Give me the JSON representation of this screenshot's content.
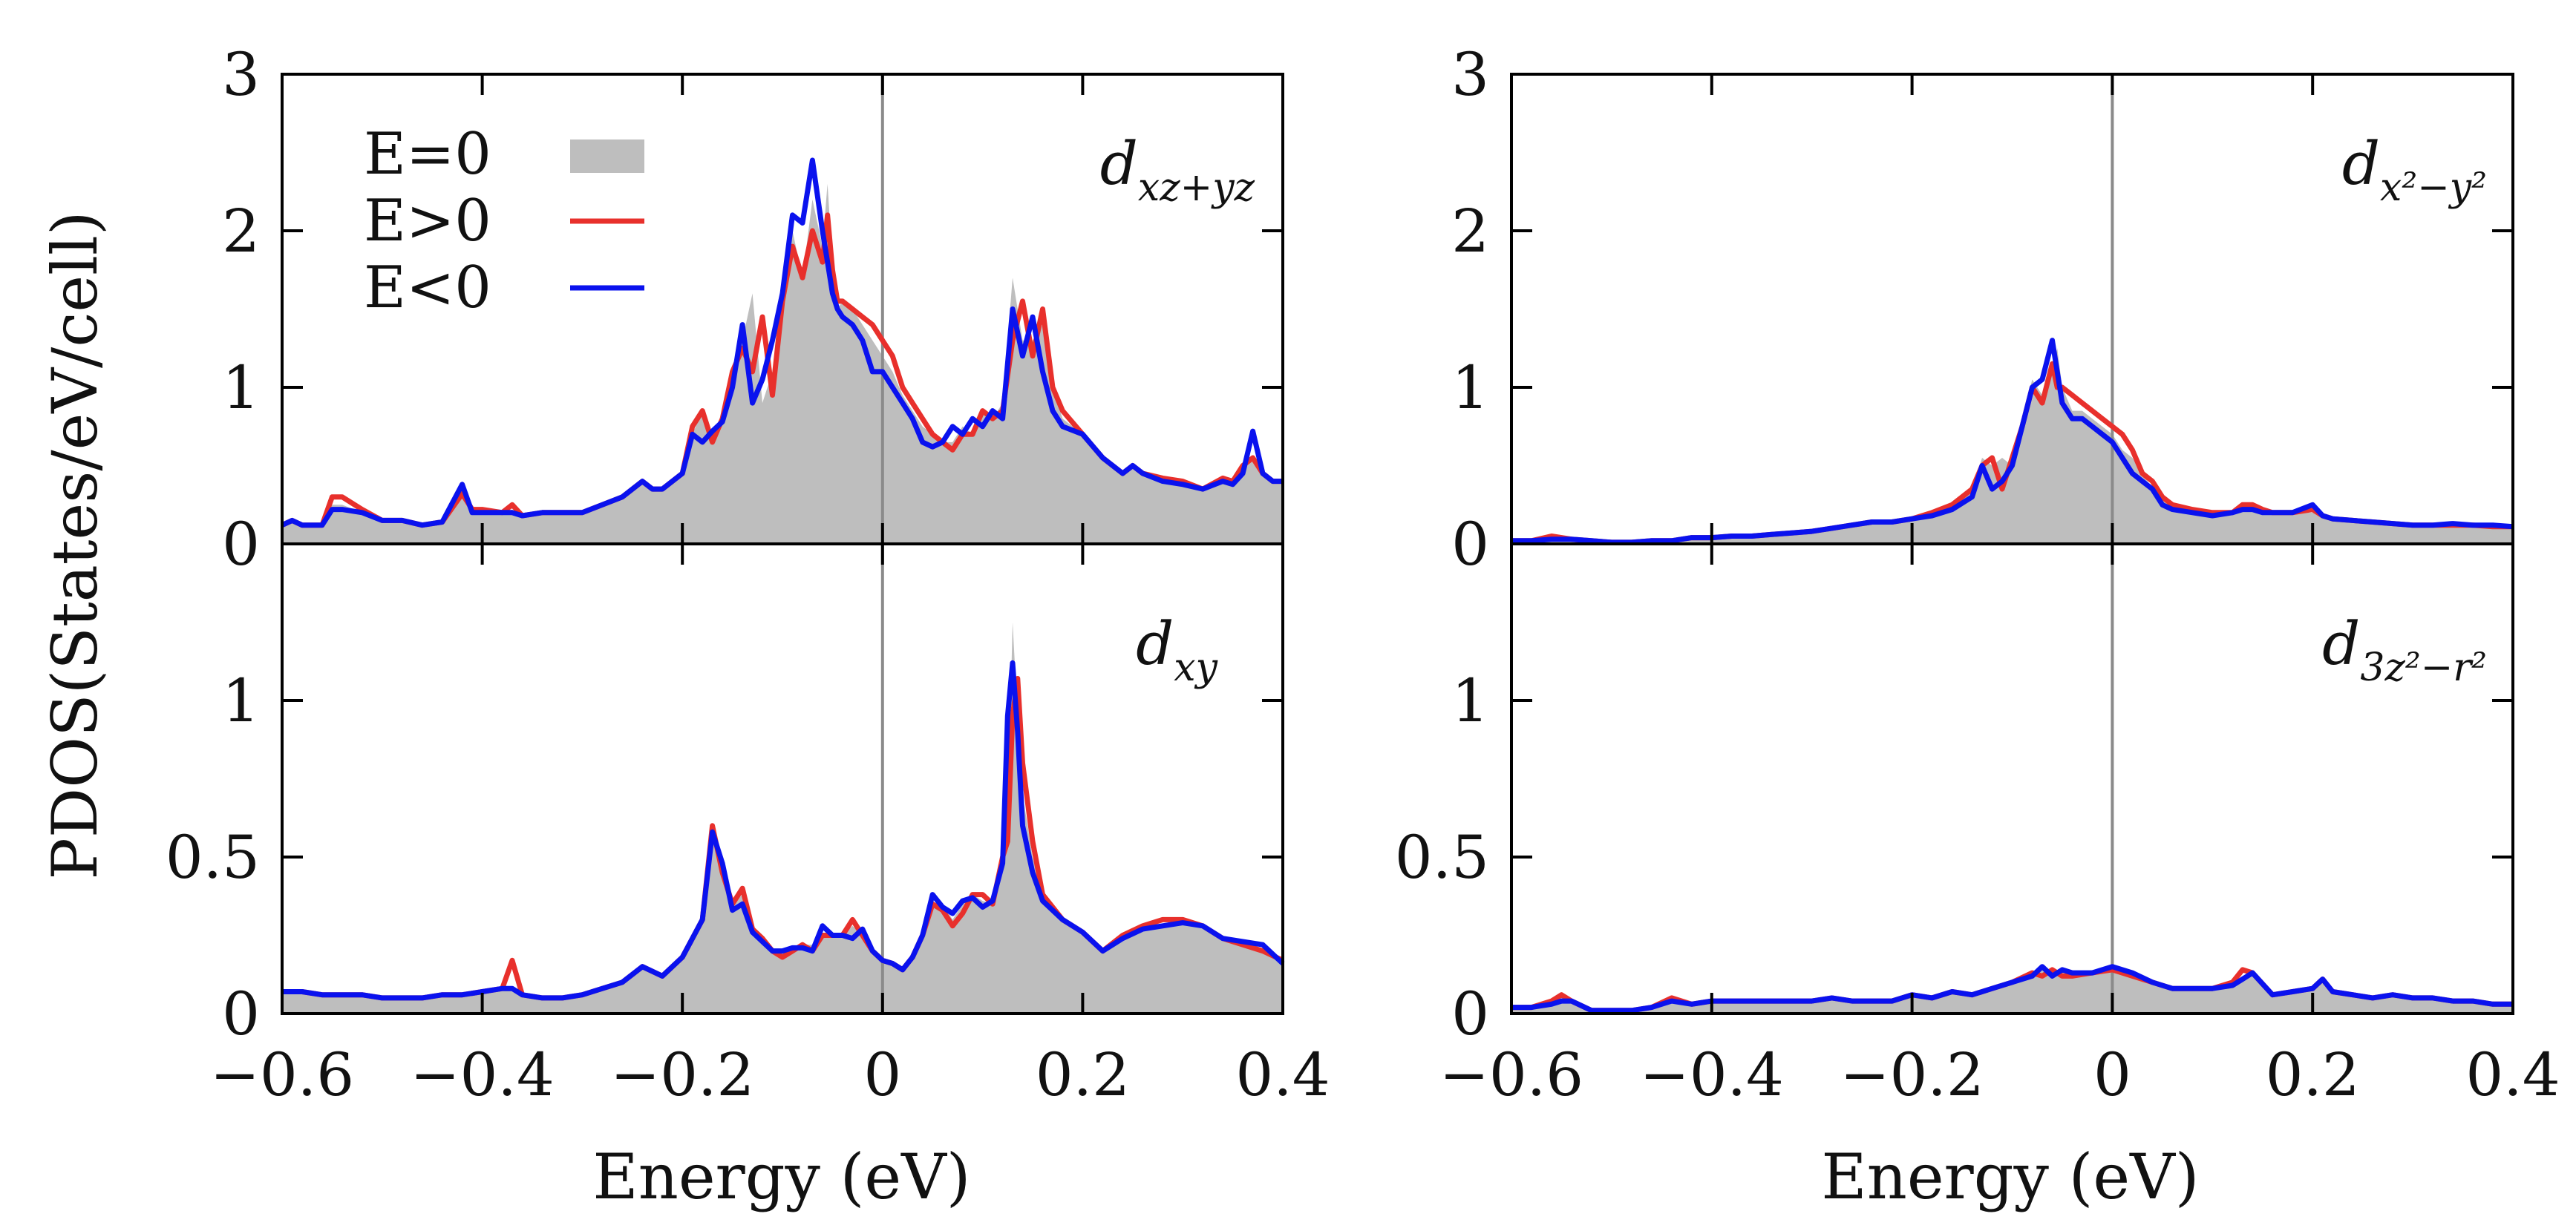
{
  "chart_data": {
    "type": "line",
    "ylabel": "PDOS(States/eV/cell)",
    "xlabel": "Energy (eV)",
    "xlim": [
      -0.6,
      0.4
    ],
    "xticks": [
      -0.6,
      -0.4,
      -0.2,
      0,
      0.2,
      0.4
    ],
    "xtick_labels": [
      "−0.6",
      "−0.4",
      "−0.2",
      "0",
      "0.2",
      "0.4"
    ],
    "legend": [
      {
        "label": "E=0",
        "style": "fill",
        "color": "#bebebe"
      },
      {
        "label": "E>0",
        "style": "line",
        "color": "#e8302c"
      },
      {
        "label": "E<0",
        "style": "line",
        "color": "#0a12ee"
      }
    ],
    "colors": {
      "fill": "#bebebe",
      "red": "#e8302c",
      "blue": "#0a12ee",
      "zero_line": "#8a8a8a"
    },
    "panels": [
      {
        "name": "dxz+yz",
        "label_main": "d",
        "label_sub": "xz+yz",
        "ylim": [
          0,
          3
        ],
        "yticks": [
          0,
          1,
          2,
          3
        ],
        "ytick_labels": [
          "0",
          "1",
          "2",
          "3"
        ],
        "x": [
          -0.6,
          -0.59,
          -0.58,
          -0.56,
          -0.55,
          -0.54,
          -0.52,
          -0.5,
          -0.48,
          -0.46,
          -0.44,
          -0.42,
          -0.41,
          -0.4,
          -0.38,
          -0.37,
          -0.36,
          -0.34,
          -0.32,
          -0.3,
          -0.28,
          -0.26,
          -0.24,
          -0.23,
          -0.22,
          -0.2,
          -0.19,
          -0.18,
          -0.17,
          -0.16,
          -0.15,
          -0.14,
          -0.13,
          -0.12,
          -0.11,
          -0.1,
          -0.09,
          -0.08,
          -0.07,
          -0.06,
          -0.055,
          -0.05,
          -0.045,
          -0.04,
          -0.03,
          -0.02,
          -0.01,
          0,
          0.01,
          0.02,
          0.03,
          0.04,
          0.05,
          0.06,
          0.07,
          0.08,
          0.09,
          0.1,
          0.11,
          0.12,
          0.13,
          0.14,
          0.15,
          0.16,
          0.17,
          0.18,
          0.2,
          0.22,
          0.24,
          0.25,
          0.26,
          0.28,
          0.3,
          0.32,
          0.34,
          0.35,
          0.36,
          0.37,
          0.38,
          0.39,
          0.4
        ],
        "fill": [
          0.12,
          0.15,
          0.12,
          0.12,
          0.25,
          0.25,
          0.2,
          0.15,
          0.15,
          0.12,
          0.14,
          0.3,
          0.2,
          0.2,
          0.2,
          0.22,
          0.18,
          0.2,
          0.2,
          0.2,
          0.25,
          0.3,
          0.4,
          0.35,
          0.35,
          0.45,
          0.7,
          0.85,
          0.65,
          0.8,
          1.1,
          1.3,
          1.6,
          0.9,
          1.1,
          1.5,
          2.0,
          1.7,
          2.2,
          1.9,
          2.3,
          1.8,
          1.5,
          1.55,
          1.5,
          1.4,
          1.3,
          1.2,
          1.1,
          0.95,
          0.85,
          0.75,
          0.7,
          0.65,
          0.65,
          0.75,
          0.7,
          0.85,
          0.8,
          0.9,
          1.7,
          1.3,
          1.3,
          1.4,
          1.0,
          0.8,
          0.7,
          0.55,
          0.45,
          0.5,
          0.45,
          0.4,
          0.38,
          0.35,
          0.4,
          0.38,
          0.5,
          0.55,
          0.45,
          0.4,
          0.4
        ],
        "red": [
          0.12,
          0.15,
          0.12,
          0.12,
          0.3,
          0.3,
          0.22,
          0.15,
          0.15,
          0.12,
          0.14,
          0.32,
          0.22,
          0.22,
          0.2,
          0.25,
          0.18,
          0.2,
          0.2,
          0.2,
          0.25,
          0.3,
          0.4,
          0.35,
          0.35,
          0.45,
          0.75,
          0.85,
          0.65,
          0.8,
          1.1,
          1.25,
          1.1,
          1.45,
          0.95,
          1.55,
          1.9,
          1.7,
          2.0,
          1.8,
          2.1,
          1.75,
          1.55,
          1.55,
          1.5,
          1.45,
          1.4,
          1.3,
          1.2,
          1.0,
          0.9,
          0.8,
          0.7,
          0.65,
          0.6,
          0.7,
          0.7,
          0.85,
          0.8,
          0.85,
          1.3,
          1.55,
          1.2,
          1.5,
          1.0,
          0.85,
          0.7,
          0.55,
          0.45,
          0.5,
          0.45,
          0.42,
          0.4,
          0.35,
          0.42,
          0.4,
          0.5,
          0.55,
          0.45,
          0.4,
          0.4
        ],
        "blue": [
          0.12,
          0.15,
          0.12,
          0.12,
          0.22,
          0.22,
          0.2,
          0.15,
          0.15,
          0.12,
          0.14,
          0.38,
          0.2,
          0.2,
          0.2,
          0.2,
          0.18,
          0.2,
          0.2,
          0.2,
          0.25,
          0.3,
          0.4,
          0.35,
          0.35,
          0.45,
          0.7,
          0.65,
          0.72,
          0.78,
          1.0,
          1.4,
          0.9,
          1.05,
          1.3,
          1.6,
          2.1,
          2.05,
          2.45,
          2.0,
          1.8,
          1.6,
          1.5,
          1.45,
          1.4,
          1.3,
          1.1,
          1.1,
          1.0,
          0.9,
          0.8,
          0.65,
          0.62,
          0.65,
          0.75,
          0.7,
          0.8,
          0.75,
          0.85,
          0.8,
          1.5,
          1.2,
          1.45,
          1.1,
          0.85,
          0.75,
          0.7,
          0.55,
          0.45,
          0.5,
          0.45,
          0.4,
          0.38,
          0.35,
          0.4,
          0.38,
          0.45,
          0.72,
          0.45,
          0.4,
          0.4
        ]
      },
      {
        "name": "dx2-y2",
        "label_main": "d",
        "label_sub": "x²−y²",
        "ylim": [
          0,
          3
        ],
        "yticks": [
          0,
          1,
          2,
          3
        ],
        "ytick_labels": [
          "0",
          "1",
          "2",
          "3"
        ],
        "x": [
          -0.6,
          -0.58,
          -0.56,
          -0.54,
          -0.52,
          -0.5,
          -0.48,
          -0.46,
          -0.44,
          -0.42,
          -0.4,
          -0.38,
          -0.36,
          -0.34,
          -0.32,
          -0.3,
          -0.28,
          -0.26,
          -0.24,
          -0.22,
          -0.2,
          -0.18,
          -0.16,
          -0.14,
          -0.13,
          -0.12,
          -0.11,
          -0.1,
          -0.09,
          -0.08,
          -0.07,
          -0.06,
          -0.055,
          -0.05,
          -0.04,
          -0.03,
          -0.02,
          -0.01,
          0,
          0.01,
          0.02,
          0.03,
          0.04,
          0.05,
          0.06,
          0.08,
          0.1,
          0.12,
          0.13,
          0.14,
          0.15,
          0.16,
          0.18,
          0.2,
          0.21,
          0.22,
          0.24,
          0.26,
          0.28,
          0.3,
          0.32,
          0.34,
          0.36,
          0.38,
          0.4
        ],
        "fill": [
          0.02,
          0.02,
          0.04,
          0.03,
          0.02,
          0.01,
          0.01,
          0.02,
          0.02,
          0.04,
          0.04,
          0.05,
          0.05,
          0.06,
          0.07,
          0.08,
          0.1,
          0.12,
          0.14,
          0.14,
          0.16,
          0.2,
          0.25,
          0.35,
          0.55,
          0.5,
          0.55,
          0.5,
          0.8,
          1.05,
          0.95,
          1.1,
          1.25,
          1.0,
          0.85,
          0.85,
          0.8,
          0.75,
          0.7,
          0.6,
          0.55,
          0.45,
          0.35,
          0.3,
          0.25,
          0.22,
          0.2,
          0.2,
          0.22,
          0.25,
          0.22,
          0.2,
          0.2,
          0.2,
          0.18,
          0.16,
          0.15,
          0.14,
          0.13,
          0.12,
          0.12,
          0.12,
          0.12,
          0.11,
          0.11
        ],
        "red": [
          0.02,
          0.02,
          0.05,
          0.03,
          0.02,
          0.01,
          0.01,
          0.02,
          0.02,
          0.04,
          0.04,
          0.05,
          0.05,
          0.06,
          0.07,
          0.08,
          0.1,
          0.12,
          0.14,
          0.14,
          0.16,
          0.2,
          0.25,
          0.35,
          0.5,
          0.55,
          0.35,
          0.55,
          0.75,
          1.0,
          0.9,
          1.15,
          1.0,
          1.0,
          0.95,
          0.9,
          0.85,
          0.8,
          0.75,
          0.7,
          0.6,
          0.45,
          0.4,
          0.3,
          0.25,
          0.22,
          0.2,
          0.2,
          0.25,
          0.25,
          0.22,
          0.2,
          0.2,
          0.22,
          0.18,
          0.16,
          0.15,
          0.14,
          0.13,
          0.12,
          0.12,
          0.12,
          0.12,
          0.11,
          0.11
        ],
        "blue": [
          0.02,
          0.02,
          0.03,
          0.03,
          0.02,
          0.01,
          0.01,
          0.02,
          0.02,
          0.04,
          0.04,
          0.05,
          0.05,
          0.06,
          0.07,
          0.08,
          0.1,
          0.12,
          0.14,
          0.14,
          0.16,
          0.18,
          0.22,
          0.3,
          0.5,
          0.35,
          0.4,
          0.5,
          0.75,
          1.0,
          1.05,
          1.3,
          1.1,
          0.9,
          0.8,
          0.8,
          0.75,
          0.7,
          0.65,
          0.55,
          0.45,
          0.4,
          0.35,
          0.25,
          0.22,
          0.2,
          0.18,
          0.2,
          0.22,
          0.22,
          0.2,
          0.2,
          0.2,
          0.25,
          0.18,
          0.16,
          0.15,
          0.14,
          0.13,
          0.12,
          0.12,
          0.13,
          0.12,
          0.12,
          0.11
        ]
      },
      {
        "name": "dxy",
        "label_main": "d",
        "label_sub": "xy",
        "ylim": [
          0,
          1.5
        ],
        "yticks": [
          0,
          0.5,
          1
        ],
        "ytick_labels": [
          "0",
          "0.5",
          "1"
        ],
        "x": [
          -0.6,
          -0.58,
          -0.56,
          -0.54,
          -0.52,
          -0.5,
          -0.48,
          -0.46,
          -0.44,
          -0.42,
          -0.4,
          -0.38,
          -0.37,
          -0.36,
          -0.34,
          -0.32,
          -0.3,
          -0.28,
          -0.26,
          -0.24,
          -0.22,
          -0.2,
          -0.18,
          -0.17,
          -0.16,
          -0.15,
          -0.14,
          -0.13,
          -0.12,
          -0.11,
          -0.1,
          -0.09,
          -0.08,
          -0.07,
          -0.06,
          -0.05,
          -0.04,
          -0.03,
          -0.02,
          -0.01,
          0,
          0.01,
          0.02,
          0.03,
          0.04,
          0.05,
          0.06,
          0.07,
          0.08,
          0.09,
          0.1,
          0.11,
          0.12,
          0.125,
          0.13,
          0.135,
          0.14,
          0.15,
          0.16,
          0.18,
          0.2,
          0.22,
          0.24,
          0.26,
          0.28,
          0.3,
          0.32,
          0.34,
          0.36,
          0.38,
          0.4
        ],
        "fill": [
          0.07,
          0.07,
          0.06,
          0.06,
          0.06,
          0.05,
          0.05,
          0.05,
          0.06,
          0.06,
          0.07,
          0.08,
          0.08,
          0.06,
          0.05,
          0.05,
          0.06,
          0.08,
          0.1,
          0.15,
          0.12,
          0.18,
          0.3,
          0.6,
          0.5,
          0.35,
          0.38,
          0.28,
          0.25,
          0.2,
          0.2,
          0.2,
          0.22,
          0.22,
          0.25,
          0.25,
          0.25,
          0.28,
          0.25,
          0.2,
          0.17,
          0.16,
          0.14,
          0.18,
          0.25,
          0.35,
          0.35,
          0.3,
          0.35,
          0.38,
          0.36,
          0.35,
          0.45,
          0.6,
          1.25,
          0.95,
          0.7,
          0.5,
          0.38,
          0.3,
          0.25,
          0.2,
          0.25,
          0.28,
          0.28,
          0.3,
          0.28,
          0.24,
          0.22,
          0.2,
          0.18
        ],
        "red": [
          0.07,
          0.07,
          0.06,
          0.06,
          0.06,
          0.05,
          0.05,
          0.05,
          0.06,
          0.06,
          0.07,
          0.08,
          0.17,
          0.06,
          0.05,
          0.05,
          0.06,
          0.08,
          0.1,
          0.15,
          0.12,
          0.18,
          0.3,
          0.6,
          0.45,
          0.35,
          0.4,
          0.27,
          0.24,
          0.2,
          0.18,
          0.2,
          0.22,
          0.2,
          0.25,
          0.25,
          0.25,
          0.3,
          0.25,
          0.2,
          0.17,
          0.16,
          0.14,
          0.18,
          0.25,
          0.35,
          0.33,
          0.28,
          0.32,
          0.38,
          0.38,
          0.35,
          0.5,
          0.55,
          0.95,
          1.07,
          0.8,
          0.55,
          0.38,
          0.3,
          0.26,
          0.2,
          0.25,
          0.28,
          0.3,
          0.3,
          0.28,
          0.24,
          0.22,
          0.2,
          0.17
        ],
        "blue": [
          0.07,
          0.07,
          0.06,
          0.06,
          0.06,
          0.05,
          0.05,
          0.05,
          0.06,
          0.06,
          0.07,
          0.08,
          0.08,
          0.06,
          0.05,
          0.05,
          0.06,
          0.08,
          0.1,
          0.15,
          0.12,
          0.18,
          0.3,
          0.58,
          0.48,
          0.33,
          0.35,
          0.26,
          0.23,
          0.2,
          0.2,
          0.21,
          0.21,
          0.2,
          0.28,
          0.25,
          0.25,
          0.24,
          0.27,
          0.2,
          0.17,
          0.16,
          0.14,
          0.18,
          0.25,
          0.38,
          0.34,
          0.32,
          0.36,
          0.37,
          0.34,
          0.36,
          0.48,
          0.95,
          1.12,
          0.9,
          0.6,
          0.45,
          0.36,
          0.3,
          0.26,
          0.2,
          0.24,
          0.27,
          0.28,
          0.29,
          0.28,
          0.24,
          0.23,
          0.22,
          0.16
        ]
      },
      {
        "name": "d3z2-r2",
        "label_main": "d",
        "label_sub": "3z²−r²",
        "ylim": [
          0,
          1.5
        ],
        "yticks": [
          0,
          0.5,
          1
        ],
        "ytick_labels": [
          "0",
          "0.5",
          "1"
        ],
        "x": [
          -0.6,
          -0.58,
          -0.56,
          -0.55,
          -0.54,
          -0.52,
          -0.5,
          -0.48,
          -0.46,
          -0.44,
          -0.42,
          -0.4,
          -0.38,
          -0.36,
          -0.34,
          -0.32,
          -0.3,
          -0.28,
          -0.26,
          -0.24,
          -0.22,
          -0.2,
          -0.18,
          -0.16,
          -0.14,
          -0.12,
          -0.1,
          -0.08,
          -0.07,
          -0.06,
          -0.05,
          -0.04,
          -0.02,
          0,
          0.02,
          0.04,
          0.06,
          0.08,
          0.1,
          0.12,
          0.13,
          0.14,
          0.16,
          0.18,
          0.2,
          0.21,
          0.22,
          0.24,
          0.26,
          0.28,
          0.3,
          0.32,
          0.34,
          0.36,
          0.38,
          0.4
        ],
        "fill": [
          0.02,
          0.02,
          0.04,
          0.05,
          0.04,
          0.01,
          0.01,
          0.01,
          0.02,
          0.04,
          0.03,
          0.04,
          0.04,
          0.04,
          0.04,
          0.04,
          0.04,
          0.05,
          0.04,
          0.04,
          0.04,
          0.06,
          0.05,
          0.07,
          0.06,
          0.08,
          0.1,
          0.12,
          0.14,
          0.13,
          0.14,
          0.12,
          0.13,
          0.14,
          0.12,
          0.1,
          0.08,
          0.08,
          0.08,
          0.09,
          0.12,
          0.12,
          0.06,
          0.07,
          0.08,
          0.1,
          0.07,
          0.06,
          0.05,
          0.06,
          0.05,
          0.05,
          0.04,
          0.04,
          0.03,
          0.03
        ],
        "red": [
          0.02,
          0.02,
          0.04,
          0.06,
          0.04,
          0.01,
          0.01,
          0.01,
          0.02,
          0.05,
          0.03,
          0.04,
          0.04,
          0.04,
          0.04,
          0.04,
          0.04,
          0.05,
          0.04,
          0.04,
          0.04,
          0.06,
          0.05,
          0.07,
          0.06,
          0.08,
          0.1,
          0.13,
          0.12,
          0.14,
          0.12,
          0.12,
          0.13,
          0.14,
          0.12,
          0.1,
          0.08,
          0.08,
          0.08,
          0.1,
          0.14,
          0.13,
          0.06,
          0.07,
          0.08,
          0.11,
          0.07,
          0.06,
          0.05,
          0.06,
          0.05,
          0.05,
          0.04,
          0.04,
          0.03,
          0.03
        ],
        "blue": [
          0.02,
          0.02,
          0.03,
          0.04,
          0.04,
          0.01,
          0.01,
          0.01,
          0.02,
          0.04,
          0.03,
          0.04,
          0.04,
          0.04,
          0.04,
          0.04,
          0.04,
          0.05,
          0.04,
          0.04,
          0.04,
          0.06,
          0.05,
          0.07,
          0.06,
          0.08,
          0.1,
          0.12,
          0.15,
          0.12,
          0.14,
          0.13,
          0.13,
          0.15,
          0.13,
          0.1,
          0.08,
          0.08,
          0.08,
          0.09,
          0.11,
          0.13,
          0.06,
          0.07,
          0.08,
          0.11,
          0.07,
          0.06,
          0.05,
          0.06,
          0.05,
          0.05,
          0.04,
          0.04,
          0.03,
          0.03
        ]
      }
    ]
  }
}
